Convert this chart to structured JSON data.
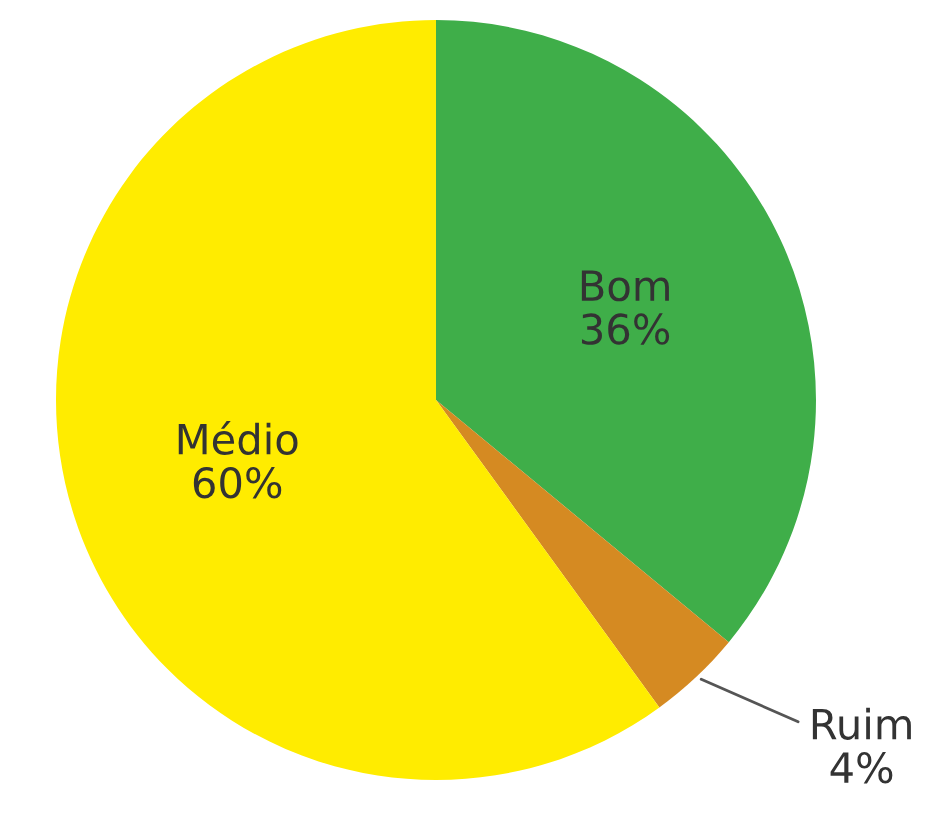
{
  "chart_data": {
    "type": "pie",
    "categories": [
      "Bom",
      "Ruim",
      "Médio"
    ],
    "values": [
      36,
      4,
      60
    ],
    "value_labels": [
      "36%",
      "4%",
      "60%"
    ],
    "colors": [
      "#3fae49",
      "#d58a22",
      "#ffec00"
    ]
  }
}
